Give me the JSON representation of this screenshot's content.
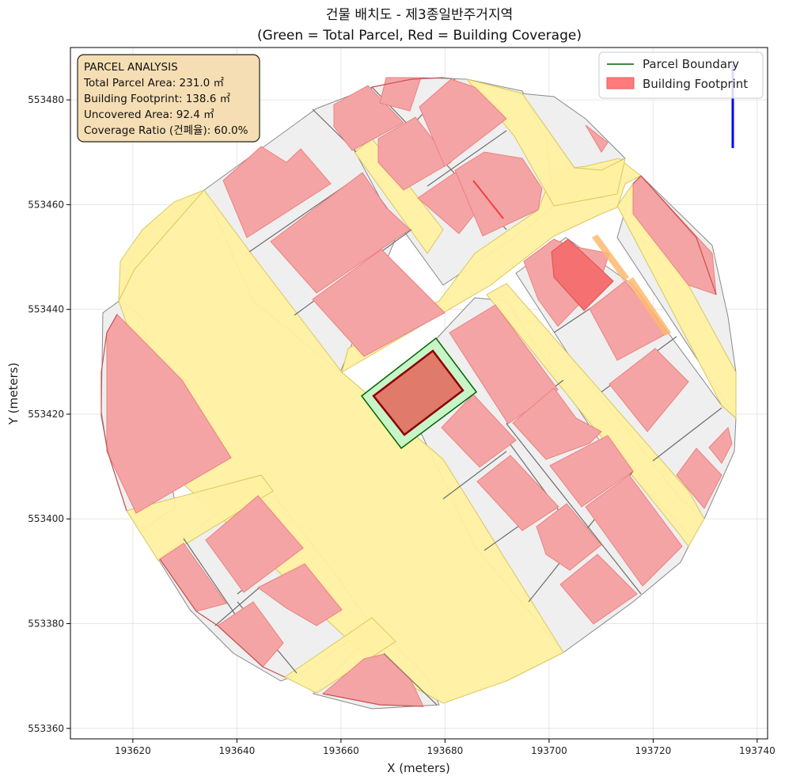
{
  "title": {
    "line1": "건물 배치도 - 제3종일반주거지역",
    "line2": "(Green = Total Parcel, Red = Building Coverage)"
  },
  "axes": {
    "xlabel": "X (meters)",
    "ylabel": "Y (meters)",
    "xlim": [
      193608,
      193742
    ],
    "ylim": [
      553358,
      553490
    ],
    "xticks": [
      193620,
      193640,
      193660,
      193680,
      193700,
      193720,
      193740
    ],
    "yticks": [
      553360,
      553380,
      553400,
      553420,
      553440,
      553460,
      553480
    ],
    "xtick_labels": [
      "193620",
      "193640",
      "193660",
      "193680",
      "193700",
      "193720",
      "193740"
    ],
    "ytick_labels": [
      "553360",
      "553380",
      "553400",
      "553420",
      "553440",
      "553460",
      "553480"
    ],
    "grid": true
  },
  "info_box": {
    "heading": "PARCEL ANALYSIS",
    "total_area": "Total Parcel Area: 231.0 ㎡",
    "footprint": "Building Footprint: 138.6 ㎡",
    "uncovered": "Uncovered Area: 92.4 ㎡",
    "coverage": "Coverage Ratio (건폐율): 60.0%"
  },
  "legend": {
    "placement": "top-right",
    "items": [
      {
        "label": "Parcel Boundary",
        "color": "#006400"
      },
      {
        "label": "Building Footprint",
        "color": "#ff0000"
      }
    ]
  },
  "colors": {
    "road": "#fff0a0",
    "neighbor_parcel": "#efefef",
    "neighbor_building": "#f4a4a4",
    "target_parcel": "#c8f5c8",
    "target_parcel_edge": "#006400",
    "target_building": "#e07a6a",
    "target_building_edge": "#8b0000",
    "highlight_building": "#f57070",
    "orange_strip": "#ffb870",
    "north_arrow": "#0000ff"
  }
}
